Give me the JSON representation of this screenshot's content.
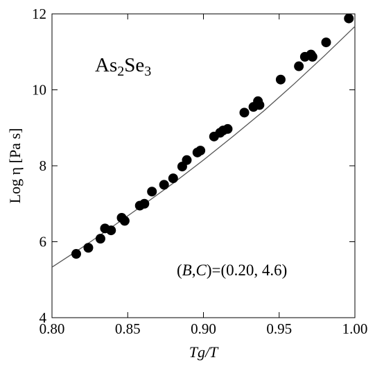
{
  "chart_data": {
    "type": "scatter",
    "title": "",
    "xlabel": "Tg/T",
    "ylabel": "Log η [Pa s]",
    "xlim": [
      0.8,
      1.0
    ],
    "ylim": [
      4,
      12
    ],
    "x_ticks": [
      0.8,
      0.85,
      0.9,
      0.95,
      1.0
    ],
    "x_tick_labels": [
      "0.80",
      "0.85",
      "0.90",
      "0.95",
      "1.00"
    ],
    "y_ticks": [
      4,
      6,
      8,
      10,
      12
    ],
    "y_tick_labels": [
      "4",
      "6",
      "8",
      "10",
      "12"
    ],
    "grid": false,
    "annotations": {
      "material": {
        "base1": "As",
        "sub1": "2",
        "base2": "Se",
        "sub2": "3"
      },
      "params": {
        "open": "(",
        "b": "B",
        "comma": ",",
        "c": "C",
        "rest": ")=(0.20, 4.6)"
      }
    },
    "series": [
      {
        "type": "scatter",
        "x": [
          0.816,
          0.824,
          0.832,
          0.835,
          0.839,
          0.846,
          0.848,
          0.858,
          0.861,
          0.866,
          0.874,
          0.88,
          0.886,
          0.889,
          0.896,
          0.898,
          0.907,
          0.911,
          0.913,
          0.916,
          0.927,
          0.933,
          0.936,
          0.937,
          0.951,
          0.963,
          0.967,
          0.971,
          0.972,
          0.981,
          0.996
        ],
        "y": [
          5.68,
          5.84,
          6.08,
          6.35,
          6.3,
          6.63,
          6.55,
          6.95,
          7.0,
          7.32,
          7.5,
          7.67,
          7.98,
          8.15,
          8.35,
          8.4,
          8.77,
          8.87,
          8.93,
          8.97,
          9.4,
          9.55,
          9.7,
          9.6,
          10.27,
          10.62,
          10.87,
          10.93,
          10.87,
          11.25,
          11.88
        ]
      },
      {
        "type": "line",
        "x": [
          0.8,
          0.82,
          0.84,
          0.86,
          0.88,
          0.9,
          0.92,
          0.94,
          0.96,
          0.98,
          1.0
        ],
        "y": [
          5.33,
          5.85,
          6.4,
          6.96,
          7.54,
          8.15,
          8.79,
          9.45,
          10.16,
          10.9,
          11.67
        ]
      }
    ]
  }
}
